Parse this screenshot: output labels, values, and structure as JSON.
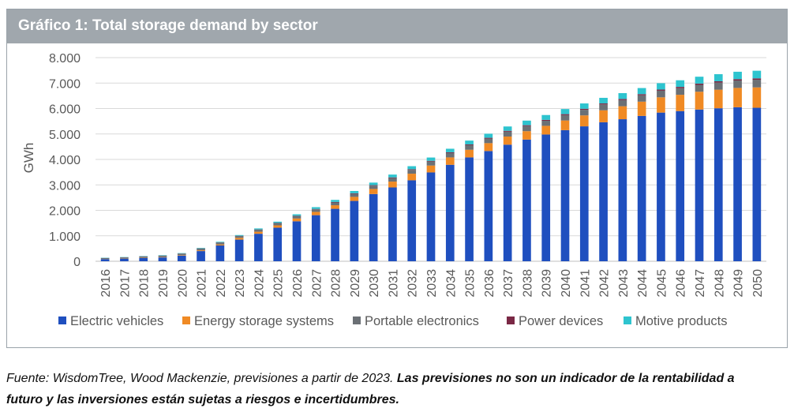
{
  "header": {
    "title": "Gráfico 1: Total storage demand by sector"
  },
  "footnote": {
    "source": "Fuente: WisdomTree, Wood Mackenzie, previsiones a partir de 2023.",
    "disclaimer": "Las previsiones no son un indicador de la rentabilidad a futuro y las inversiones están sujetas a riesgos e incertidumbres."
  },
  "chart_data": {
    "type": "bar",
    "stacked": true,
    "title": "Gráfico 1: Total storage demand by sector",
    "xlabel": "",
    "ylabel": "GWh",
    "ylim": [
      0,
      8000
    ],
    "yticks": [
      0,
      1000,
      2000,
      3000,
      4000,
      5000,
      6000,
      7000,
      8000
    ],
    "ytick_labels": [
      "0",
      "1.000",
      "2.000",
      "3.000",
      "4.000",
      "5.000",
      "6.000",
      "7.000",
      "8.000"
    ],
    "grid": true,
    "legend_position": "bottom",
    "categories": [
      "2016",
      "2017",
      "2018",
      "2019",
      "2020",
      "2021",
      "2022",
      "2023",
      "2024",
      "2025",
      "2026",
      "2027",
      "2028",
      "2029",
      "2030",
      "2031",
      "2032",
      "2033",
      "2034",
      "2035",
      "2036",
      "2037",
      "2038",
      "2039",
      "2040",
      "2041",
      "2042",
      "2043",
      "2044",
      "2045",
      "2046",
      "2047",
      "2048",
      "2049",
      "2050"
    ],
    "series": [
      {
        "name": "Electric vehicles",
        "color": "#1f4fbf",
        "values": [
          80,
          100,
          130,
          150,
          220,
          400,
          620,
          850,
          1080,
          1320,
          1570,
          1810,
          2060,
          2370,
          2640,
          2900,
          3180,
          3490,
          3790,
          4080,
          4330,
          4580,
          4780,
          4980,
          5150,
          5300,
          5460,
          5580,
          5710,
          5840,
          5900,
          5960,
          6010,
          6050,
          6030
        ]
      },
      {
        "name": "Energy storage systems",
        "color": "#f08a24",
        "values": [
          5,
          5,
          10,
          15,
          20,
          30,
          40,
          70,
          80,
          90,
          110,
          130,
          140,
          160,
          200,
          230,
          260,
          270,
          290,
          300,
          310,
          320,
          330,
          340,
          380,
          430,
          470,
          510,
          560,
          600,
          640,
          700,
          730,
          760,
          800
        ]
      },
      {
        "name": "Portable electronics",
        "color": "#6b7075",
        "values": [
          40,
          45,
          50,
          55,
          60,
          65,
          70,
          70,
          80,
          80,
          90,
          100,
          110,
          120,
          130,
          140,
          150,
          160,
          170,
          180,
          180,
          190,
          200,
          200,
          210,
          220,
          230,
          240,
          250,
          260,
          260,
          270,
          280,
          290,
          300
        ]
      },
      {
        "name": "Power devices",
        "color": "#7a2845",
        "values": [
          5,
          5,
          5,
          5,
          5,
          10,
          10,
          10,
          10,
          15,
          15,
          15,
          20,
          20,
          20,
          25,
          25,
          25,
          30,
          30,
          30,
          35,
          35,
          35,
          40,
          40,
          40,
          45,
          45,
          45,
          50,
          50,
          50,
          55,
          55
        ]
      },
      {
        "name": "Motive products",
        "color": "#2ec4cf",
        "values": [
          10,
          10,
          10,
          15,
          15,
          20,
          25,
          30,
          40,
          50,
          60,
          70,
          80,
          90,
          100,
          110,
          120,
          130,
          140,
          150,
          160,
          170,
          180,
          190,
          200,
          210,
          220,
          230,
          240,
          250,
          260,
          270,
          280,
          290,
          300
        ]
      }
    ]
  }
}
